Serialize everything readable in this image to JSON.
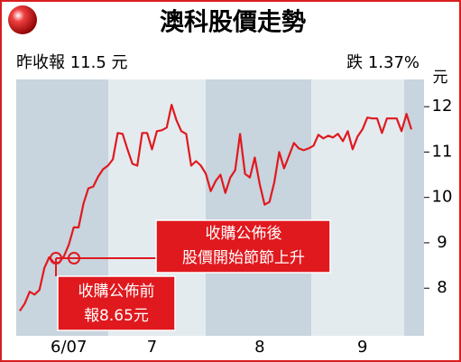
{
  "chart_data": {
    "type": "line",
    "title": "澳科股價走勢",
    "info": [
      "昨收報 11.5 元",
      "跌 1.37%"
    ],
    "y_label": "元",
    "categories": [
      null,
      null,
      null,
      null,
      null,
      null,
      null,
      null,
      null,
      null,
      "6/07",
      null,
      null,
      null,
      null,
      null,
      null,
      null,
      null,
      null,
      null,
      null,
      null,
      null,
      null,
      null,
      null,
      "7",
      null,
      null,
      null,
      null,
      null,
      null,
      null,
      null,
      null,
      null,
      null,
      null,
      null,
      null,
      null,
      null,
      null,
      null,
      null,
      null,
      null,
      "8",
      null,
      null,
      null,
      null,
      null,
      null,
      null,
      null,
      null,
      null,
      null,
      null,
      null,
      null,
      null,
      null,
      null,
      null,
      null,
      null,
      "9",
      null,
      null,
      null,
      null,
      null,
      null,
      null,
      null,
      null,
      null
    ],
    "series": [
      {
        "color": "#e0191e",
        "values": [
          7.5,
          7.66,
          7.92,
          7.86,
          7.96,
          8.44,
          8.68,
          8.56,
          8.56,
          8.7,
          8.96,
          9.34,
          9.34,
          9.86,
          10.2,
          10.24,
          10.46,
          10.62,
          10.7,
          10.84,
          11.42,
          11.4,
          11.06,
          10.74,
          10.7,
          11.42,
          11.42,
          11.06,
          11.46,
          11.48,
          11.54,
          12.04,
          11.7,
          11.46,
          11.4,
          10.7,
          10.8,
          10.7,
          10.52,
          10.14,
          10.36,
          10.5,
          10.1,
          10.44,
          10.6,
          11.4,
          10.52,
          10.44,
          10.88,
          10.3,
          9.84,
          9.9,
          10.34,
          11.0,
          10.64,
          10.92,
          11.2,
          11.08,
          11.04,
          11.08,
          11.14,
          11.38,
          11.3,
          11.36,
          11.32,
          11.4,
          11.24,
          11.46,
          11.06,
          11.34,
          11.5,
          11.76,
          11.74,
          11.74,
          11.42,
          11.74,
          11.74,
          11.74,
          11.46,
          11.84,
          11.5
        ]
      }
    ],
    "ylim": [
      6.95,
      12.6
    ],
    "yticks": [
      8,
      9,
      10,
      11,
      12
    ],
    "annotations": [
      [
        "收購公佈前",
        "報8.65元"
      ],
      [
        "收購公佈後",
        "股價開始節節上升"
      ]
    ]
  }
}
